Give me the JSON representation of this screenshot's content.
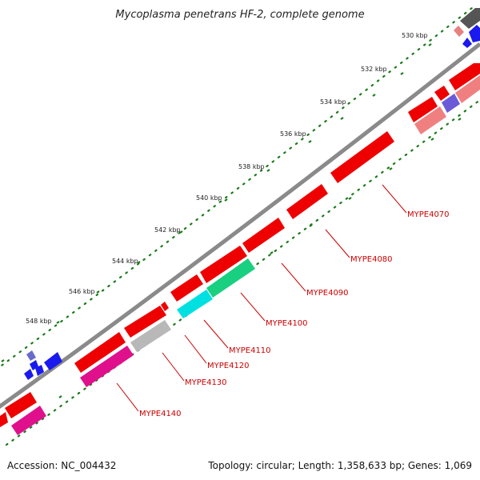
{
  "title": "Mycoplasma penetrans HF-2, complete genome",
  "footer": {
    "accession": "Accession: NC_004432",
    "summary": "Topology: circular; Length: 1,358,633 bp; Genes: 1,069"
  },
  "colors": {
    "backbone": "#7f7f7f",
    "tick": "#1a7a1a",
    "gene_label": "#cc0000",
    "gene_cds": "#ff0000"
  },
  "ruler": {
    "labels": [
      "530 kbp",
      "532 kbp",
      "534 kbp",
      "536 kbp",
      "538 kbp",
      "540 kbp",
      "542 kbp",
      "544 kbp",
      "546 kbp",
      "548 kbp"
    ]
  },
  "gene_labels": [
    "MYPE4070",
    "MYPE4080",
    "MYPE4090",
    "MYPE4100",
    "MYPE4110",
    "MYPE4120",
    "MYPE4130",
    "MYPE4140"
  ]
}
